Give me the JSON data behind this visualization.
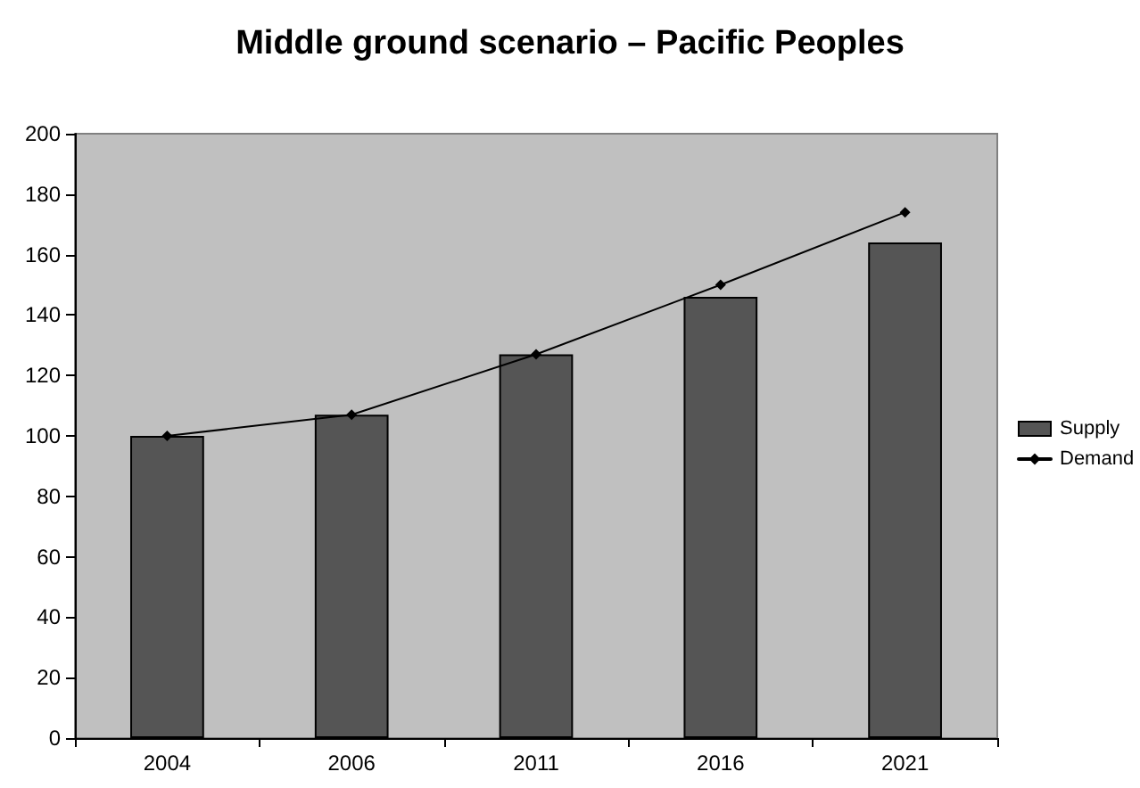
{
  "chart_data": {
    "type": "bar",
    "title": "Middle ground scenario – Pacific Peoples",
    "categories": [
      "2004",
      "2006",
      "2011",
      "2016",
      "2021"
    ],
    "series": [
      {
        "name": "Supply",
        "color": "#555555",
        "values": [
          100,
          107,
          127,
          146,
          164
        ]
      },
      {
        "name": "Demand",
        "type": "line",
        "color": "#000000",
        "values": [
          100,
          107,
          127,
          150,
          174
        ]
      }
    ],
    "ylim": [
      0,
      200
    ],
    "yticks": [
      0,
      20,
      40,
      60,
      80,
      100,
      120,
      140,
      160,
      180,
      200
    ],
    "legend": "right",
    "marker": "diamond",
    "line_style": "solid"
  }
}
